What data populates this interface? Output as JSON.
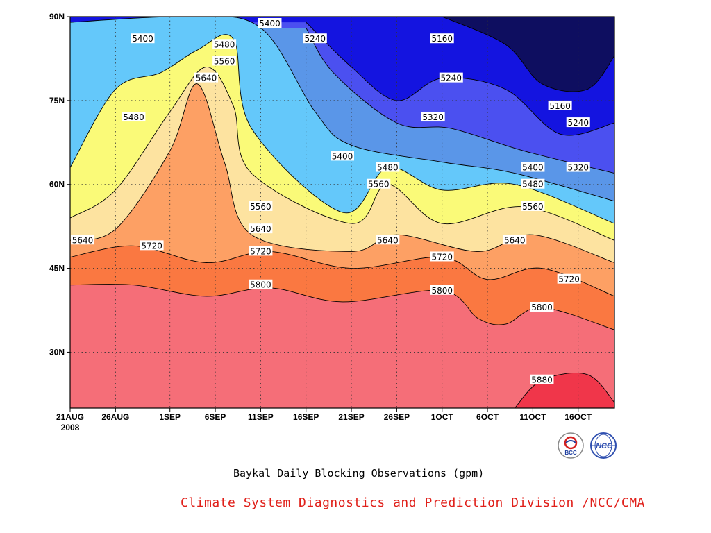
{
  "chart_data": {
    "type": "heatmap",
    "subtype": "filled-contour",
    "title": "Baykal Daily Blocking Observations (gpm)",
    "x_axis": {
      "label": "",
      "ticks": [
        "21AUG",
        "26AUG",
        "1SEP",
        "6SEP",
        "11SEP",
        "16SEP",
        "21SEP",
        "26SEP",
        "1OCT",
        "6OCT",
        "11OCT",
        "16OCT"
      ],
      "year_label": "2008",
      "range": [
        "2008-08-21",
        "2008-10-20"
      ]
    },
    "y_axis": {
      "label": "",
      "ticks": [
        "30N",
        "45N",
        "60N",
        "75N",
        "90N"
      ],
      "range": [
        20,
        90
      ]
    },
    "grid": true,
    "contour_levels": [
      5160,
      5240,
      5320,
      5400,
      5480,
      5560,
      5640,
      5720,
      5800,
      5880
    ],
    "fill_colors": [
      {
        "range": "<5160",
        "color": "#0e0e60"
      },
      {
        "range": "5160-5240",
        "color": "#1414e0"
      },
      {
        "range": "5240-5320",
        "color": "#4b50f0"
      },
      {
        "range": "5320-5400",
        "color": "#5a96e8"
      },
      {
        "range": "5400-5480",
        "color": "#64c8fa"
      },
      {
        "range": "5480-5560",
        "color": "#fafa78"
      },
      {
        "range": "5560-5640",
        "color": "#fde3a0"
      },
      {
        "range": "5640-5720",
        "color": "#fda064"
      },
      {
        "range": "5720-5800",
        "color": "#fa7841"
      },
      {
        "range": "5800-5880",
        "color": "#f56e78"
      },
      {
        "range": ">5880",
        "color": "#f0364a"
      }
    ],
    "contours": [
      {
        "level": 5800,
        "points": [
          [
            "2008-08-21",
            42
          ],
          [
            "2008-08-28",
            42
          ],
          [
            "2008-09-05",
            40
          ],
          [
            "2008-09-12",
            41.5
          ],
          [
            "2008-09-20",
            39
          ],
          [
            "2008-10-01",
            41
          ],
          [
            "2008-10-05",
            36
          ],
          [
            "2008-10-08",
            35
          ],
          [
            "2008-10-12",
            38
          ],
          [
            "2008-10-20",
            34
          ]
        ]
      },
      {
        "level": 5720,
        "points": [
          [
            "2008-08-21",
            47
          ],
          [
            "2008-08-28",
            49
          ],
          [
            "2008-09-05",
            46
          ],
          [
            "2008-09-12",
            48
          ],
          [
            "2008-09-21",
            45
          ],
          [
            "2008-10-01",
            47
          ],
          [
            "2008-10-06",
            43
          ],
          [
            "2008-10-12",
            45
          ],
          [
            "2008-10-20",
            40
          ]
        ]
      },
      {
        "level": 5640,
        "points": [
          [
            "2008-08-21",
            50
          ],
          [
            "2008-08-26",
            52
          ],
          [
            "2008-09-01",
            66
          ],
          [
            "2008-09-04",
            78
          ],
          [
            "2008-09-07",
            64
          ],
          [
            "2008-09-10",
            51
          ],
          [
            "2008-09-21",
            48
          ],
          [
            "2008-09-26",
            51
          ],
          [
            "2008-10-05",
            48
          ],
          [
            "2008-10-11",
            51
          ],
          [
            "2008-10-20",
            46
          ]
        ]
      },
      {
        "level": 5560,
        "points": [
          [
            "2008-08-21",
            54
          ],
          [
            "2008-08-26",
            59
          ],
          [
            "2008-09-01",
            73
          ],
          [
            "2008-09-05",
            81
          ],
          [
            "2008-09-08",
            74
          ],
          [
            "2008-09-10",
            62
          ],
          [
            "2008-09-21",
            53
          ],
          [
            "2008-09-25",
            60
          ],
          [
            "2008-10-01",
            53
          ],
          [
            "2008-10-10",
            56
          ],
          [
            "2008-10-20",
            50
          ]
        ]
      },
      {
        "level": 5480,
        "points": [
          [
            "2008-08-21",
            63
          ],
          [
            "2008-08-26",
            77
          ],
          [
            "2008-08-31",
            80
          ],
          [
            "2008-09-04",
            84
          ],
          [
            "2008-09-08",
            86
          ],
          [
            "2008-09-10",
            70
          ],
          [
            "2008-09-20",
            55
          ],
          [
            "2008-09-25",
            63
          ],
          [
            "2008-10-01",
            59
          ],
          [
            "2008-10-09",
            60
          ],
          [
            "2008-10-20",
            53
          ]
        ]
      },
      {
        "level": 5400,
        "points": [
          [
            "2008-08-21",
            89
          ],
          [
            "2008-09-03",
            90
          ],
          [
            "2008-09-11",
            88
          ],
          [
            "2008-09-17",
            73
          ],
          [
            "2008-09-21",
            67
          ],
          [
            "2008-10-01",
            64
          ],
          [
            "2008-10-09",
            62
          ],
          [
            "2008-10-20",
            57
          ]
        ]
      },
      {
        "level": 5320,
        "points": [
          [
            "2008-09-16",
            88
          ],
          [
            "2008-09-19",
            80
          ],
          [
            "2008-09-26",
            71
          ],
          [
            "2008-10-02",
            70
          ],
          [
            "2008-10-10",
            66
          ],
          [
            "2008-10-20",
            62
          ]
        ]
      },
      {
        "level": 5240,
        "points": [
          [
            "2008-09-16",
            89
          ],
          [
            "2008-09-21",
            81
          ],
          [
            "2008-09-26",
            75
          ],
          [
            "2008-10-01",
            79
          ],
          [
            "2008-10-08",
            77
          ],
          [
            "2008-10-14",
            69
          ],
          [
            "2008-10-20",
            71
          ]
        ]
      },
      {
        "level": 5160,
        "points": [
          [
            "2008-10-01",
            90
          ],
          [
            "2008-10-08",
            85
          ],
          [
            "2008-10-12",
            78
          ],
          [
            "2008-10-17",
            77
          ],
          [
            "2008-10-20",
            83
          ]
        ]
      },
      {
        "level": 5880,
        "points": [
          [
            "2008-10-09",
            20
          ],
          [
            "2008-10-12",
            25
          ],
          [
            "2008-10-17",
            26
          ],
          [
            "2008-10-20",
            21
          ]
        ]
      }
    ],
    "contour_labels": [
      {
        "text": "5400",
        "x": "2008-08-29",
        "y": 86
      },
      {
        "text": "5480",
        "x": "2008-09-07",
        "y": 85
      },
      {
        "text": "5560",
        "x": "2008-09-07",
        "y": 82
      },
      {
        "text": "5640",
        "x": "2008-09-05",
        "y": 79
      },
      {
        "text": "5480",
        "x": "2008-08-28",
        "y": 72
      },
      {
        "text": "5400",
        "x": "2008-09-12",
        "y": 89
      },
      {
        "text": "5240",
        "x": "2008-09-17",
        "y": 86
      },
      {
        "text": "5160",
        "x": "2008-10-01",
        "y": 86
      },
      {
        "text": "5240",
        "x": "2008-10-02",
        "y": 79
      },
      {
        "text": "5320",
        "x": "2008-09-30",
        "y": 72
      },
      {
        "text": "5160",
        "x": "2008-10-14",
        "y": 74
      },
      {
        "text": "5240",
        "x": "2008-10-16",
        "y": 71
      },
      {
        "text": "5400",
        "x": "2008-09-20",
        "y": 65
      },
      {
        "text": "5480",
        "x": "2008-09-25",
        "y": 63
      },
      {
        "text": "5560",
        "x": "2008-09-24",
        "y": 60
      },
      {
        "text": "5400",
        "x": "2008-10-11",
        "y": 63
      },
      {
        "text": "5320",
        "x": "2008-10-16",
        "y": 63
      },
      {
        "text": "5480",
        "x": "2008-10-11",
        "y": 60
      },
      {
        "text": "5560",
        "x": "2008-10-11",
        "y": 56
      },
      {
        "text": "5560",
        "x": "2008-09-11",
        "y": 56
      },
      {
        "text": "5640",
        "x": "2008-09-11",
        "y": 52
      },
      {
        "text": "5640",
        "x": "2008-08-21",
        "y": 50
      },
      {
        "text": "5640",
        "x": "2008-09-25",
        "y": 50
      },
      {
        "text": "5640",
        "x": "2008-10-09",
        "y": 50
      },
      {
        "text": "5720",
        "x": "2008-08-30",
        "y": 49
      },
      {
        "text": "5720",
        "x": "2008-09-11",
        "y": 48
      },
      {
        "text": "5720",
        "x": "2008-10-01",
        "y": 47
      },
      {
        "text": "5720",
        "x": "2008-10-15",
        "y": 43
      },
      {
        "text": "5800",
        "x": "2008-09-11",
        "y": 42
      },
      {
        "text": "5800",
        "x": "2008-10-01",
        "y": 41
      },
      {
        "text": "5800",
        "x": "2008-10-12",
        "y": 38
      },
      {
        "text": "5880",
        "x": "2008-10-12",
        "y": 25
      }
    ]
  },
  "footer": {
    "title": "Baykal Daily Blocking Observations (gpm)",
    "credit": "Climate System Diagnostics and Prediction Division /NCC/CMA"
  },
  "logos": [
    {
      "name": "bcc-logo",
      "text": "BCC"
    },
    {
      "name": "ncc-logo",
      "text": "NCC"
    }
  ]
}
